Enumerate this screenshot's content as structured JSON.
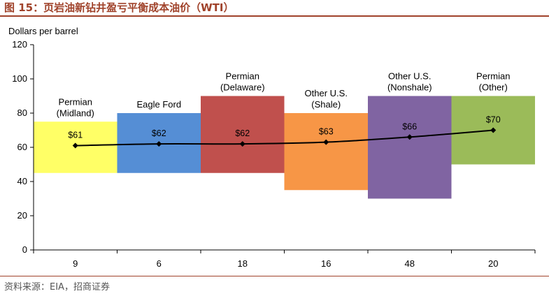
{
  "figure": {
    "title": "图 15：页岩油新钻井盈亏平衡成本油价（WTI）",
    "source": "资料来源：EIA，招商证券"
  },
  "colors": {
    "title": "#a0422a",
    "axis": "#000000",
    "line": "#000000"
  },
  "chart_data": {
    "type": "bar",
    "title": "",
    "xlabel": "",
    "ylabel": "Dollars per barrel",
    "ylim": [
      0,
      120
    ],
    "yticks": [
      0,
      20,
      40,
      60,
      80,
      100,
      120
    ],
    "grid": false,
    "categories": [
      "9",
      "6",
      "18",
      "16",
      "48",
      "20"
    ],
    "series": [
      {
        "kind": "floating-range",
        "regions": [
          "Permian (Midland)",
          "Eagle Ford",
          "Permian (Delaware)",
          "Other U.S. (Shale)",
          "Other U.S. (Nonshale)",
          "Permian (Other)"
        ],
        "region_lines": [
          [
            "Permian",
            "(Midland)"
          ],
          [
            "Eagle Ford"
          ],
          [
            "Permian",
            "(Delaware)"
          ],
          [
            "Other U.S.",
            "(Shale)"
          ],
          [
            "Other U.S.",
            "(Nonshale)"
          ],
          [
            "Permian",
            "(Other)"
          ]
        ],
        "low": [
          45,
          45,
          45,
          35,
          30,
          50
        ],
        "high": [
          75,
          80,
          90,
          80,
          90,
          90
        ],
        "colors": [
          "#ffff66",
          "#558ed5",
          "#c0504d",
          "#f79646",
          "#8064a2",
          "#9bbb59"
        ]
      },
      {
        "kind": "line",
        "values": [
          61,
          62,
          62,
          63,
          66,
          70
        ],
        "labels": [
          "$61",
          "$62",
          "$62",
          "$63",
          "$66",
          "$70"
        ]
      }
    ]
  }
}
